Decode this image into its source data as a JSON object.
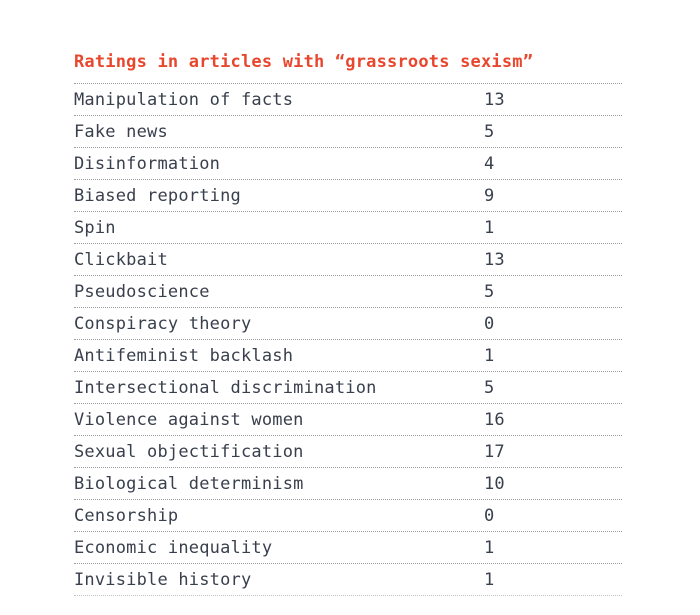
{
  "header": {
    "title": "Ratings in articles with “grassroots sexism”",
    "title_color": "#e8472e"
  },
  "colors": {
    "text": "#39404d",
    "rule_dots": "#98a0a8",
    "background": "#ffffff"
  },
  "chart_data": {
    "type": "table",
    "title": "Ratings in articles with “grassroots sexism”",
    "categories": [
      "Manipulation of facts",
      "Fake news",
      "Disinformation",
      "Biased reporting",
      "Spin",
      "Clickbait",
      "Pseudoscience",
      "Conspiracy theory",
      "Antifeminist backlash",
      "Intersectional discrimination",
      "Violence against women",
      "Sexual objectification",
      "Biological determinism",
      "Censorship",
      "Economic inequality",
      "Invisible history"
    ],
    "values": [
      13,
      5,
      4,
      9,
      1,
      13,
      5,
      0,
      1,
      5,
      16,
      17,
      10,
      0,
      1,
      1
    ],
    "columns": [
      "label",
      "count"
    ],
    "legend": "none",
    "grid": "dotted-row-separators"
  }
}
